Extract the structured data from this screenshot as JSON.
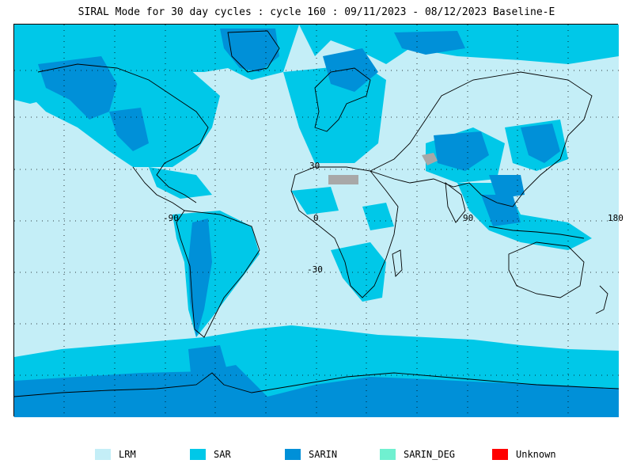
{
  "title": "SIRAL Mode for 30 day cycles : cycle 160 : 09/11/2023 - 08/12/2023 Baseline-E",
  "axis_labels": {
    "lat_30": "30",
    "lat_m30": "-30",
    "lon_m90": "-90",
    "lon_0": "0",
    "lon_90": "90",
    "lon_180": "180"
  },
  "legend": [
    {
      "label": "LRM",
      "color": "#c4eef7"
    },
    {
      "label": "SAR",
      "color": "#00c8e8"
    },
    {
      "label": "SARIN",
      "color": "#0090d8"
    },
    {
      "label": "SARIN_DEG",
      "color": "#70f0d0"
    },
    {
      "label": "Unknown",
      "color": "#ff0000"
    }
  ],
  "colors": {
    "lrm": "#c4eef7",
    "sar": "#00c8e8",
    "sarin": "#0090d8",
    "grey_gap": "#a8a8a8"
  }
}
